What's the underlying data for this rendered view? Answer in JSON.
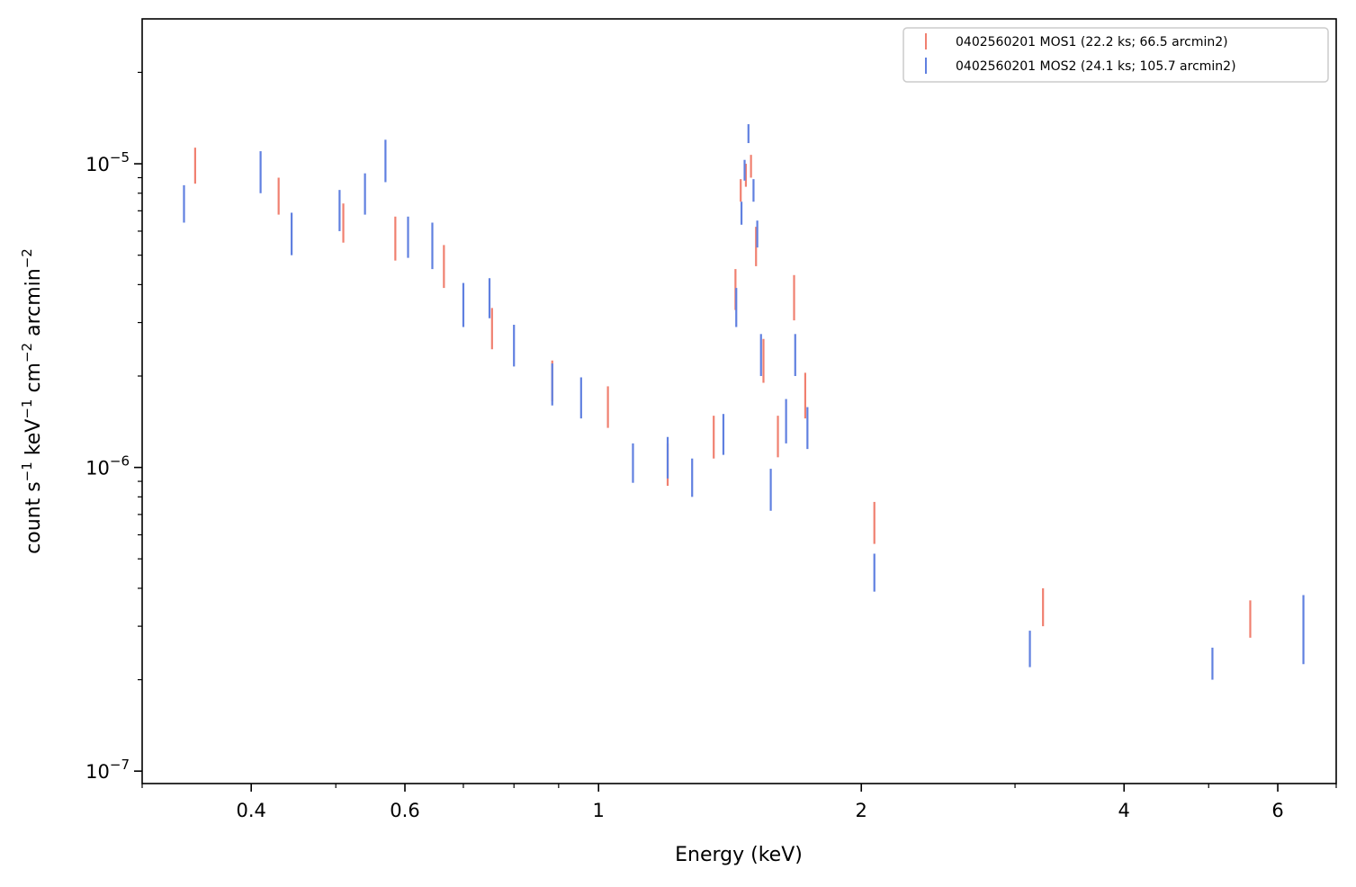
{
  "chart_data": {
    "type": "scatter",
    "xlabel": "Energy (keV)",
    "ylabel": "count s$^{-1}$ keV$^{-1}$ cm$^{-2}$ arcmin$^{-2}$",
    "ylabel_parts": [
      "count s",
      "−1",
      " keV",
      "−1",
      " cm",
      "−2",
      " arcmin",
      "−2"
    ],
    "x_scale": "log",
    "y_scale": "log",
    "xlim": [
      0.3,
      7.0
    ],
    "ylim": [
      9.1e-08,
      3e-05
    ],
    "x_ticks": [
      {
        "value": 0.4,
        "label": "0.4"
      },
      {
        "value": 0.6,
        "label": "0.6"
      },
      {
        "value": 1,
        "label": "1"
      },
      {
        "value": 2,
        "label": "2"
      },
      {
        "value": 4,
        "label": "4"
      },
      {
        "value": 6,
        "label": "6"
      }
    ],
    "y_ticks": [
      {
        "value": 1e-07,
        "base": "10",
        "exp": "−7"
      },
      {
        "value": 1e-06,
        "base": "10",
        "exp": "−6"
      },
      {
        "value": 1e-05,
        "base": "10",
        "exp": "−5"
      }
    ],
    "grid": false,
    "legend_position": "top-right",
    "series": [
      {
        "name": "0402560201 MOS1 (22.2 ks; 66.5 arcmin2)",
        "color": "#f08070",
        "points": [
          {
            "x": 0.345,
            "lo": 8.6e-06,
            "hi": 1.13e-05
          },
          {
            "x": 0.43,
            "lo": 6.8e-06,
            "hi": 9e-06
          },
          {
            "x": 0.51,
            "lo": 5.5e-06,
            "hi": 7.4e-06
          },
          {
            "x": 0.585,
            "lo": 4.8e-06,
            "hi": 6.7e-06
          },
          {
            "x": 0.665,
            "lo": 3.9e-06,
            "hi": 5.4e-06
          },
          {
            "x": 0.755,
            "lo": 2.45e-06,
            "hi": 3.35e-06
          },
          {
            "x": 0.885,
            "lo": 1.65e-06,
            "hi": 2.25e-06
          },
          {
            "x": 1.025,
            "lo": 1.35e-06,
            "hi": 1.85e-06
          },
          {
            "x": 1.2,
            "lo": 8.7e-07,
            "hi": 1.2e-06
          },
          {
            "x": 1.355,
            "lo": 1.07e-06,
            "hi": 1.48e-06
          },
          {
            "x": 1.435,
            "lo": 3.3e-06,
            "hi": 4.5e-06
          },
          {
            "x": 1.455,
            "lo": 7.5e-06,
            "hi": 8.9e-06
          },
          {
            "x": 1.475,
            "lo": 8.4e-06,
            "hi": 1e-05
          },
          {
            "x": 1.495,
            "lo": 9e-06,
            "hi": 1.07e-05
          },
          {
            "x": 1.515,
            "lo": 4.6e-06,
            "hi": 6.2e-06
          },
          {
            "x": 1.545,
            "lo": 1.9e-06,
            "hi": 2.65e-06
          },
          {
            "x": 1.605,
            "lo": 1.08e-06,
            "hi": 1.48e-06
          },
          {
            "x": 1.675,
            "lo": 3.05e-06,
            "hi": 4.3e-06
          },
          {
            "x": 1.725,
            "lo": 1.45e-06,
            "hi": 2.05e-06
          },
          {
            "x": 2.07,
            "lo": 5.6e-07,
            "hi": 7.7e-07
          },
          {
            "x": 3.23,
            "lo": 3e-07,
            "hi": 4e-07
          },
          {
            "x": 5.58,
            "lo": 2.75e-07,
            "hi": 3.65e-07
          }
        ]
      },
      {
        "name": "0402560201 MOS2 (24.1 ks; 105.7 arcmin2)",
        "color": "#6080e0",
        "points": [
          {
            "x": 0.335,
            "lo": 6.4e-06,
            "hi": 8.5e-06
          },
          {
            "x": 0.41,
            "lo": 8e-06,
            "hi": 1.1e-05
          },
          {
            "x": 0.445,
            "lo": 5e-06,
            "hi": 6.9e-06
          },
          {
            "x": 0.505,
            "lo": 6e-06,
            "hi": 8.2e-06
          },
          {
            "x": 0.54,
            "lo": 6.8e-06,
            "hi": 9.3e-06
          },
          {
            "x": 0.57,
            "lo": 8.7e-06,
            "hi": 1.2e-05
          },
          {
            "x": 0.605,
            "lo": 4.9e-06,
            "hi": 6.7e-06
          },
          {
            "x": 0.645,
            "lo": 4.5e-06,
            "hi": 6.4e-06
          },
          {
            "x": 0.7,
            "lo": 2.9e-06,
            "hi": 4.05e-06
          },
          {
            "x": 0.75,
            "lo": 3.1e-06,
            "hi": 4.2e-06
          },
          {
            "x": 0.8,
            "lo": 2.15e-06,
            "hi": 2.95e-06
          },
          {
            "x": 0.885,
            "lo": 1.6e-06,
            "hi": 2.2e-06
          },
          {
            "x": 0.955,
            "lo": 1.45e-06,
            "hi": 1.98e-06
          },
          {
            "x": 1.095,
            "lo": 8.9e-07,
            "hi": 1.2e-06
          },
          {
            "x": 1.2,
            "lo": 9.2e-07,
            "hi": 1.26e-06
          },
          {
            "x": 1.28,
            "lo": 8e-07,
            "hi": 1.07e-06
          },
          {
            "x": 1.39,
            "lo": 1.1e-06,
            "hi": 1.5e-06
          },
          {
            "x": 1.438,
            "lo": 2.9e-06,
            "hi": 3.9e-06
          },
          {
            "x": 1.458,
            "lo": 6.3e-06,
            "hi": 7.5e-06
          },
          {
            "x": 1.47,
            "lo": 8.8e-06,
            "hi": 1.03e-05
          },
          {
            "x": 1.485,
            "lo": 1.17e-05,
            "hi": 1.35e-05
          },
          {
            "x": 1.505,
            "lo": 7.5e-06,
            "hi": 8.9e-06
          },
          {
            "x": 1.52,
            "lo": 5.3e-06,
            "hi": 6.5e-06
          },
          {
            "x": 1.535,
            "lo": 2e-06,
            "hi": 2.75e-06
          },
          {
            "x": 1.575,
            "lo": 7.2e-07,
            "hi": 9.9e-07
          },
          {
            "x": 1.64,
            "lo": 1.2e-06,
            "hi": 1.68e-06
          },
          {
            "x": 1.68,
            "lo": 2e-06,
            "hi": 2.75e-06
          },
          {
            "x": 1.735,
            "lo": 1.15e-06,
            "hi": 1.58e-06
          },
          {
            "x": 2.07,
            "lo": 3.9e-07,
            "hi": 5.2e-07
          },
          {
            "x": 3.12,
            "lo": 2.2e-07,
            "hi": 2.9e-07
          },
          {
            "x": 5.05,
            "lo": 2e-07,
            "hi": 2.55e-07
          },
          {
            "x": 6.42,
            "lo": 2.25e-07,
            "hi": 3.8e-07
          }
        ]
      }
    ]
  }
}
